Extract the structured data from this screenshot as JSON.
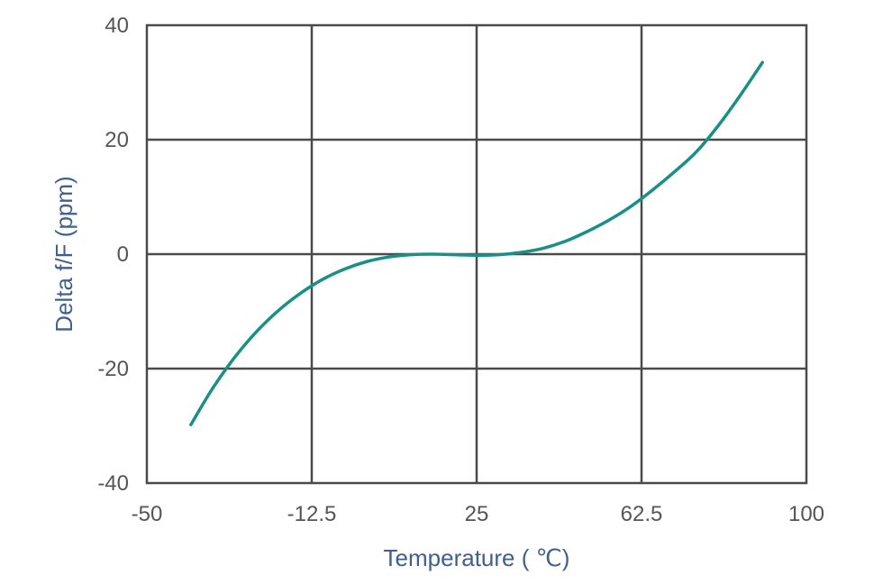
{
  "chart_data": {
    "type": "line",
    "title": "",
    "xlabel": "Temperature ( ℃)",
    "ylabel": "Delta f/F (ppm)",
    "xlim": [
      -50,
      100
    ],
    "ylim": [
      -40,
      40
    ],
    "xticks": [
      -50,
      -12.5,
      25,
      62.5,
      100
    ],
    "xtick_labels": [
      "-50",
      "-12.5",
      "25",
      "62.5",
      "100"
    ],
    "yticks": [
      -40,
      -20,
      0,
      20,
      40
    ],
    "ytick_labels": [
      "-40",
      "-20",
      "0",
      "20",
      "40"
    ],
    "grid": true,
    "series": [
      {
        "color": "#1a9085",
        "x": [
          -40,
          -35,
          -30,
          -25,
          -20,
          -15,
          -10,
          -5,
          0,
          5,
          10,
          15,
          20,
          25,
          30,
          35,
          40,
          45,
          50,
          55,
          60,
          65,
          70,
          75,
          80,
          85,
          90
        ],
        "y": [
          -29.8,
          -23.4,
          -18.0,
          -13.5,
          -9.8,
          -6.8,
          -4.4,
          -2.6,
          -1.3,
          -0.5,
          -0.1,
          0.0,
          -0.1,
          -0.2,
          -0.1,
          0.3,
          1.0,
          2.2,
          3.9,
          5.9,
          8.3,
          11.2,
          14.4,
          17.9,
          22.5,
          27.8,
          33.5
        ]
      }
    ]
  }
}
